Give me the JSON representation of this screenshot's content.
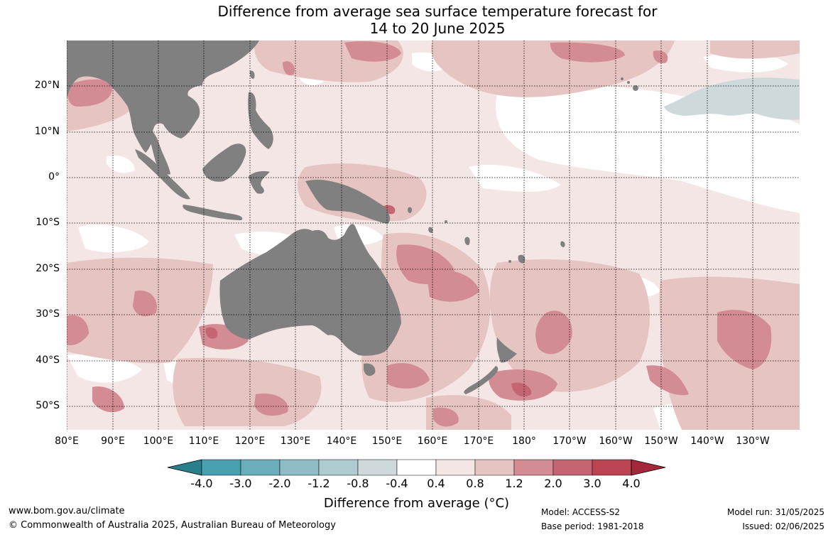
{
  "title": {
    "line1": "Difference from average sea surface temperature forecast for",
    "line2": "14 to 20 June 2025"
  },
  "lat_labels": [
    "20°N",
    "10°N",
    "0°",
    "10°S",
    "20°S",
    "30°S",
    "40°S",
    "50°S"
  ],
  "lon_labels": [
    "80°E",
    "90°E",
    "100°E",
    "110°E",
    "120°E",
    "130°E",
    "140°E",
    "150°E",
    "160°E",
    "170°E",
    "180°",
    "170°W",
    "160°W",
    "150°W",
    "140°W",
    "130°W"
  ],
  "colorbar": {
    "title": "Difference from average (°C)",
    "ticks": [
      "-4.0",
      "-3.0",
      "-2.0",
      "-1.2",
      "-0.8",
      "-0.4",
      "0.4",
      "0.8",
      "1.2",
      "2.0",
      "3.0",
      "4.0"
    ],
    "colors": [
      "#2a7f8c",
      "#47a0b0",
      "#6aaebb",
      "#8dbcc4",
      "#aecbcf",
      "#cdd9da",
      "#ffffff",
      "#f4e6e4",
      "#e6c4c1",
      "#d38c93",
      "#c56472",
      "#bb4452",
      "#a5273c"
    ]
  },
  "colors": {
    "land": "#808080",
    "grid": "#000000"
  },
  "footer": {
    "website": "www.bom.gov.au/climate",
    "copyright": "© Commonwealth of Australia 2025, Australian Bureau of Meteorology",
    "model": "Model: ACCESS-S2",
    "base_period": "Base period: 1981-2018",
    "model_run": "Model run: 31/05/2025",
    "issued": "Issued: 02/06/2025"
  }
}
